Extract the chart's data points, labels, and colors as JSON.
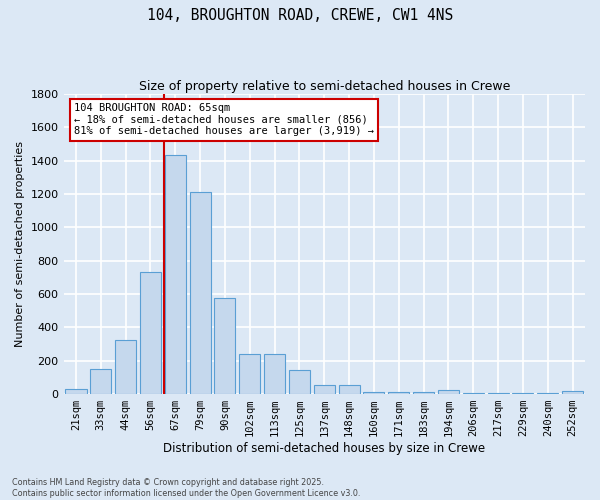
{
  "title_line1": "104, BROUGHTON ROAD, CREWE, CW1 4NS",
  "title_line2": "Size of property relative to semi-detached houses in Crewe",
  "xlabel": "Distribution of semi-detached houses by size in Crewe",
  "ylabel": "Number of semi-detached properties",
  "categories": [
    "21sqm",
    "33sqm",
    "44sqm",
    "56sqm",
    "67sqm",
    "79sqm",
    "90sqm",
    "102sqm",
    "113sqm",
    "125sqm",
    "137sqm",
    "148sqm",
    "160sqm",
    "171sqm",
    "183sqm",
    "194sqm",
    "206sqm",
    "217sqm",
    "229sqm",
    "240sqm",
    "252sqm"
  ],
  "values": [
    30,
    150,
    325,
    730,
    1435,
    1215,
    575,
    240,
    240,
    145,
    55,
    55,
    10,
    10,
    10,
    25,
    5,
    5,
    5,
    5,
    20
  ],
  "bar_color": "#c5d8ed",
  "bar_edge_color": "#5a9fd4",
  "annotation_text": "104 BROUGHTON ROAD: 65sqm\n← 18% of semi-detached houses are smaller (856)\n81% of semi-detached houses are larger (3,919) →",
  "annotation_box_color": "#ffffff",
  "annotation_box_edge": "#cc0000",
  "vline_color": "#cc0000",
  "ylim_max": 1800,
  "yticks": [
    0,
    200,
    400,
    600,
    800,
    1000,
    1200,
    1400,
    1600,
    1800
  ],
  "background_color": "#dce8f5",
  "grid_color": "#ffffff",
  "footer_line1": "Contains HM Land Registry data © Crown copyright and database right 2025.",
  "footer_line2": "Contains public sector information licensed under the Open Government Licence v3.0."
}
